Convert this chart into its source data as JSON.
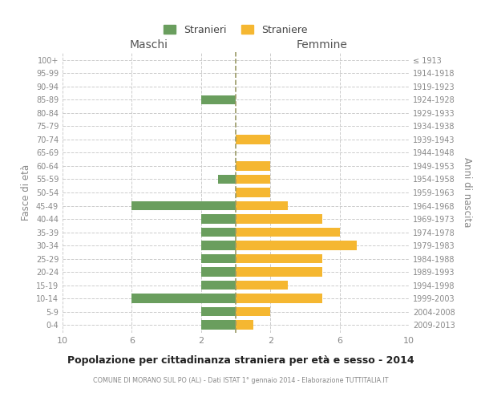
{
  "age_groups": [
    "0-4",
    "5-9",
    "10-14",
    "15-19",
    "20-24",
    "25-29",
    "30-34",
    "35-39",
    "40-44",
    "45-49",
    "50-54",
    "55-59",
    "60-64",
    "65-69",
    "70-74",
    "75-79",
    "80-84",
    "85-89",
    "90-94",
    "95-99",
    "100+"
  ],
  "birth_years": [
    "2009-2013",
    "2004-2008",
    "1999-2003",
    "1994-1998",
    "1989-1993",
    "1984-1988",
    "1979-1983",
    "1974-1978",
    "1969-1973",
    "1964-1968",
    "1959-1963",
    "1954-1958",
    "1949-1953",
    "1944-1948",
    "1939-1943",
    "1934-1938",
    "1929-1933",
    "1924-1928",
    "1919-1923",
    "1914-1918",
    "≤ 1913"
  ],
  "maschi": [
    2,
    2,
    6,
    2,
    2,
    2,
    2,
    2,
    2,
    6,
    0,
    1,
    0,
    0,
    0,
    0,
    0,
    2,
    0,
    0,
    0
  ],
  "femmine": [
    1,
    2,
    5,
    3,
    5,
    5,
    7,
    6,
    5,
    3,
    2,
    2,
    2,
    0,
    2,
    0,
    0,
    0,
    0,
    0,
    0
  ],
  "color_maschi": "#6a9e5e",
  "color_femmine": "#f5b731",
  "title": "Popolazione per cittadinanza straniera per età e sesso - 2014",
  "subtitle": "COMUNE DI MORANO SUL PO (AL) - Dati ISTAT 1° gennaio 2014 - Elaborazione TUTTITALIA.IT",
  "xlabel_left": "Maschi",
  "xlabel_right": "Femmine",
  "ylabel_left": "Fasce di età",
  "ylabel_right": "Anni di nascita",
  "legend_maschi": "Stranieri",
  "legend_femmine": "Straniere",
  "xlim": 10,
  "background_color": "#ffffff",
  "grid_color": "#cccccc"
}
